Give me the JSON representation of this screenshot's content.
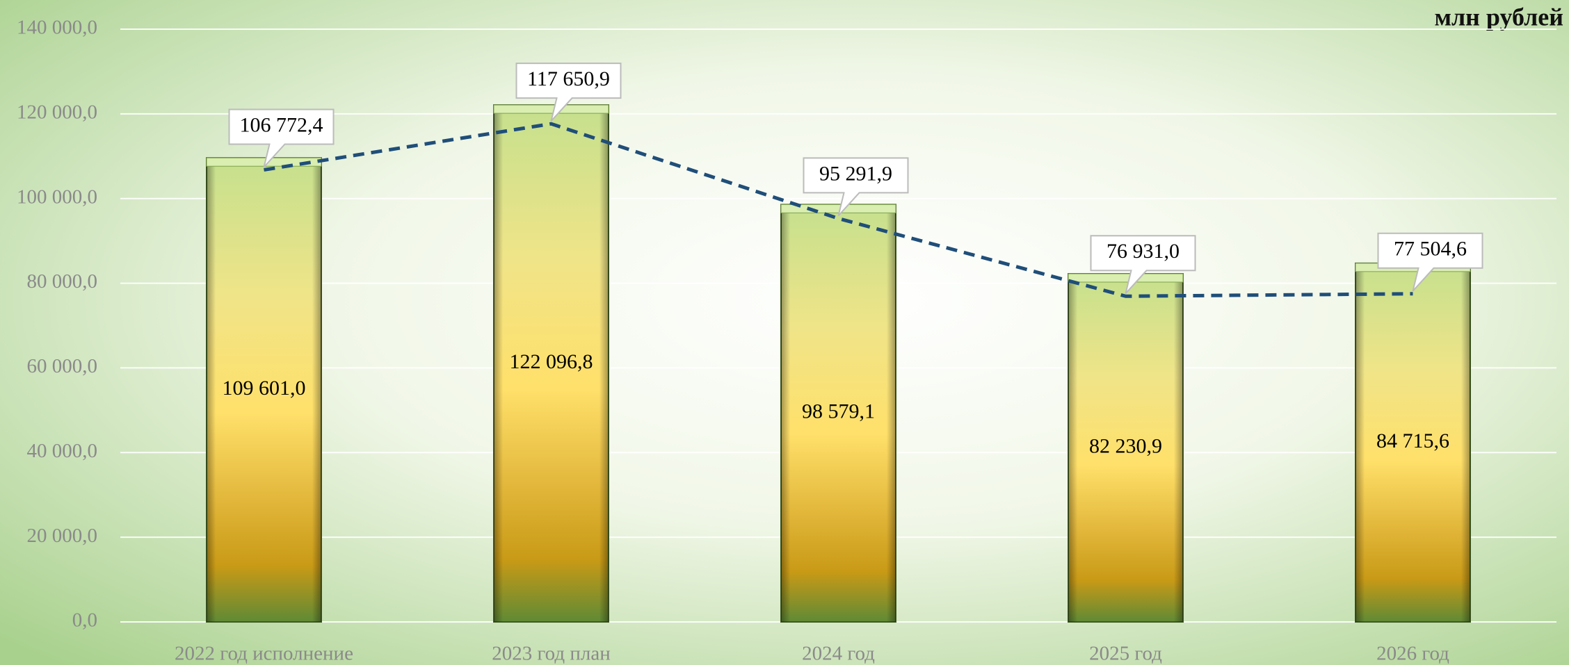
{
  "chart_data": {
    "type": "bar_line",
    "subtitle": "млн рублей",
    "categories": [
      "2022 год исполнение",
      "2023 год план",
      "2024 год",
      "2025 год",
      "2026 год"
    ],
    "series": [
      {
        "type": "bar",
        "color": "#e8c94a",
        "values": [
          109601.0,
          122096.8,
          98579.1,
          82230.9,
          84715.6
        ],
        "value_labels": [
          "109 601,0",
          "122 096,8",
          "98 579,1",
          "82 230,9",
          "84 715,6"
        ]
      },
      {
        "type": "line",
        "color": "#1f4e79",
        "values": [
          106772.4,
          117650.9,
          95291.9,
          76931.0,
          77504.6
        ],
        "value_labels": [
          "106 772,4",
          "117 650,9",
          "95 291,9",
          "76 931,0",
          "77 504,6"
        ]
      }
    ],
    "ylim": [
      0,
      140000
    ],
    "yticks": [
      {
        "value": 0,
        "label": "0,0"
      },
      {
        "value": 20000,
        "label": "20 000,0"
      },
      {
        "value": 40000,
        "label": "40 000,0"
      },
      {
        "value": 60000,
        "label": "60 000,0"
      },
      {
        "value": 80000,
        "label": "80 000,0"
      },
      {
        "value": 100000,
        "label": "100 000,0"
      },
      {
        "value": 120000,
        "label": "120 000,0"
      },
      {
        "value": 140000,
        "label": "140 000,0"
      }
    ],
    "grid": true
  }
}
